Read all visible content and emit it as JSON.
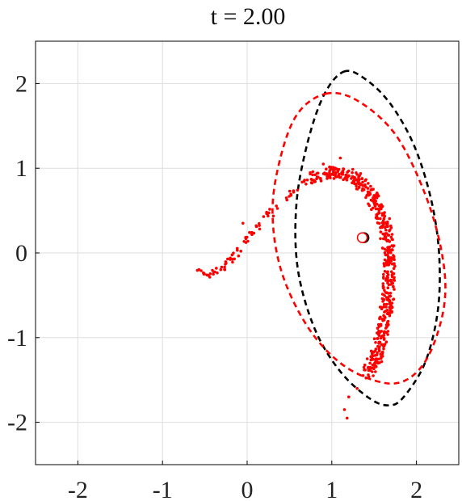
{
  "chart_data": {
    "type": "scatter",
    "title": "t = 2.00",
    "xlabel": "",
    "ylabel": "",
    "xlim": [
      -2.5,
      2.5
    ],
    "ylim": [
      -2.5,
      2.5
    ],
    "xticks": [
      -2,
      -1,
      0,
      1,
      2
    ],
    "yticks": [
      2,
      1,
      0,
      -1,
      -2
    ],
    "xtick_labels": [
      "-2",
      "-1",
      "0",
      "1",
      "2"
    ],
    "ytick_labels": [
      "2",
      "1",
      "0",
      "-1",
      "-2"
    ],
    "grid": true,
    "colors": {
      "particles": "#ff0000",
      "ellipse_black": "#000000",
      "ellipse_red": "#ff0000",
      "grid": "#dddddd",
      "axes": "#000000"
    },
    "particle_arc": {
      "description_points": [
        [
          -0.6,
          -0.22
        ],
        [
          -0.45,
          -0.26
        ],
        [
          -0.25,
          -0.15
        ],
        [
          -0.15,
          -0.02
        ],
        [
          0.0,
          0.18
        ],
        [
          0.2,
          0.38
        ],
        [
          0.4,
          0.6
        ],
        [
          0.6,
          0.76
        ],
        [
          0.8,
          0.88
        ],
        [
          1.0,
          0.96
        ],
        [
          1.2,
          0.92
        ],
        [
          1.35,
          0.82
        ],
        [
          1.5,
          0.64
        ],
        [
          1.6,
          0.42
        ],
        [
          1.65,
          0.2
        ],
        [
          1.68,
          -0.05
        ],
        [
          1.68,
          -0.3
        ],
        [
          1.66,
          -0.55
        ],
        [
          1.62,
          -0.8
        ],
        [
          1.58,
          -1.05
        ],
        [
          1.52,
          -1.25
        ],
        [
          1.42,
          -1.42
        ]
      ],
      "extra_points": [
        [
          -0.4,
          -0.25
        ],
        [
          -0.25,
          -0.12
        ],
        [
          1.18,
          -1.95
        ],
        [
          1.15,
          -1.85
        ],
        [
          1.3,
          -1.6
        ],
        [
          1.2,
          -1.7
        ],
        [
          -0.05,
          0.35
        ],
        [
          0.9,
          1.05
        ],
        [
          1.1,
          1.12
        ]
      ]
    },
    "series": [
      {
        "kind": "ellipse",
        "style": "dashed",
        "color": "#000000",
        "points": [
          [
            1.14,
            2.14
          ],
          [
            1.4,
            2.05
          ],
          [
            1.7,
            1.75
          ],
          [
            1.98,
            1.25
          ],
          [
            2.18,
            0.6
          ],
          [
            2.27,
            -0.05
          ],
          [
            2.25,
            -0.7
          ],
          [
            2.1,
            -1.3
          ],
          [
            1.85,
            -1.7
          ],
          [
            1.68,
            -1.8
          ],
          [
            1.45,
            -1.72
          ],
          [
            1.1,
            -1.4
          ],
          [
            0.8,
            -0.9
          ],
          [
            0.6,
            -0.2
          ],
          [
            0.58,
            0.55
          ],
          [
            0.7,
            1.25
          ],
          [
            0.9,
            1.85
          ],
          [
            1.14,
            2.14
          ]
        ]
      },
      {
        "kind": "ellipse",
        "style": "dashed",
        "color": "#ff0000",
        "points": [
          [
            0.93,
            1.88
          ],
          [
            1.3,
            1.8
          ],
          [
            1.75,
            1.4
          ],
          [
            2.1,
            0.7
          ],
          [
            2.3,
            0.0
          ],
          [
            2.33,
            -0.6
          ],
          [
            2.15,
            -1.2
          ],
          [
            1.88,
            -1.5
          ],
          [
            1.55,
            -1.52
          ],
          [
            1.1,
            -1.3
          ],
          [
            0.7,
            -0.85
          ],
          [
            0.4,
            -0.2
          ],
          [
            0.3,
            0.5
          ],
          [
            0.4,
            1.15
          ],
          [
            0.6,
            1.65
          ],
          [
            0.93,
            1.88
          ]
        ]
      }
    ],
    "markers": [
      {
        "name": "centroid-black",
        "x": 1.38,
        "y": 0.18,
        "fill": "#000000"
      },
      {
        "name": "centroid-red",
        "x": 1.36,
        "y": 0.18,
        "fill": "#ffffff",
        "stroke": "#ff0000"
      }
    ]
  }
}
